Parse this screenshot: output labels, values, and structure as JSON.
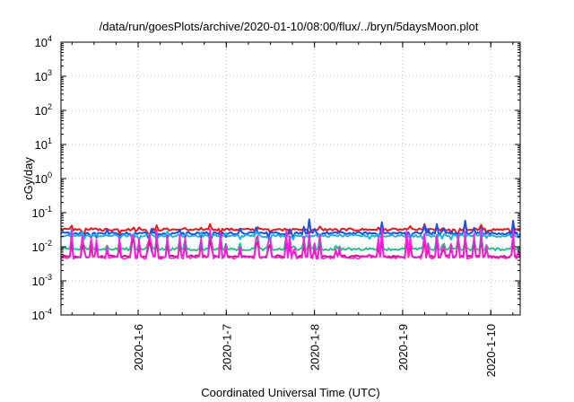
{
  "chart_data": {
    "type": "line",
    "title": "/data/run/goesPlots/archive/2020-01-10/08:00/flux/../bryn/5daysMoon.plot",
    "xlabel": "Coordinated Universal Time (UTC)",
    "ylabel": "cGy/day",
    "yscale": "log",
    "ylim": [
      0.0001,
      10000
    ],
    "xlim": [
      "2020-01-05 03:00",
      "2020-01-10 08:00"
    ],
    "grid": true,
    "y_ticks": [
      {
        "base": "10",
        "exp": "-4"
      },
      {
        "base": "10",
        "exp": "-3"
      },
      {
        "base": "10",
        "exp": "-2"
      },
      {
        "base": "10",
        "exp": "-1"
      },
      {
        "base": "10",
        "exp": "0"
      },
      {
        "base": "10",
        "exp": "1"
      },
      {
        "base": "10",
        "exp": "2"
      },
      {
        "base": "10",
        "exp": "3"
      },
      {
        "base": "10",
        "exp": "4"
      }
    ],
    "x_ticks": [
      "2020-1-6",
      "2020-1-7",
      "2020-1-8",
      "2020-1-9",
      "2020-1-10"
    ],
    "series": [
      {
        "color": "#e8191c",
        "level": 0.032,
        "spike": 0.048,
        "floor": 0.026
      },
      {
        "color": "#1f4fe0",
        "level": 0.025,
        "spike": 0.07,
        "floor": 0.02
      },
      {
        "color": "#1bb6e8",
        "level": 0.021,
        "spike": 0.035,
        "floor": 0.018
      },
      {
        "color": "#2bbf8c",
        "level": 0.0085,
        "spike": 0.025,
        "floor": 0.0065
      },
      {
        "color": "#c0157a",
        "level": 0.0052,
        "spike": 0.022,
        "floor": 0.0042
      },
      {
        "color": "#ff1fe0",
        "level": 0.0048,
        "spike": 0.04,
        "floor": 0.0038
      }
    ]
  }
}
